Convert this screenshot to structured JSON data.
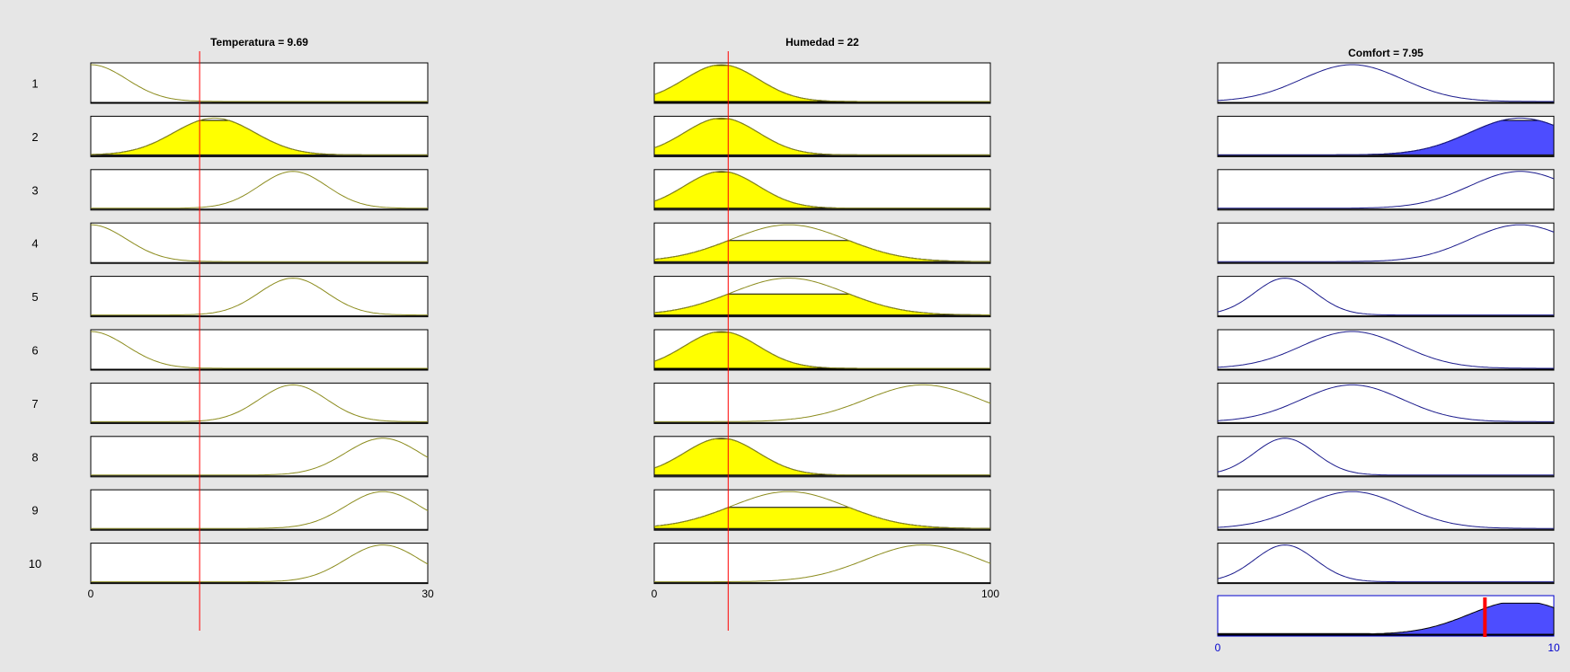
{
  "chart_data": {
    "type": "fuzzy-rule-viewer",
    "rules": [
      "1",
      "2",
      "3",
      "4",
      "5",
      "6",
      "7",
      "8",
      "9",
      "10"
    ],
    "inputs": [
      {
        "title": "Temperatura = 9.69",
        "value": 9.69,
        "range": [
          0,
          30
        ],
        "tick_labels": [
          "0",
          "30"
        ],
        "line_color": "#8c8c1e",
        "fill_color": "#ffff00",
        "mfs": [
          {
            "c": 0,
            "s": 3.2
          },
          {
            "c": 11,
            "s": 3.6
          },
          {
            "c": 18,
            "s": 3.0
          },
          {
            "c": 0,
            "s": 3.2
          },
          {
            "c": 18,
            "s": 3.0
          },
          {
            "c": 0,
            "s": 3.2
          },
          {
            "c": 18,
            "s": 3.0
          },
          {
            "c": 26,
            "s": 3.3
          },
          {
            "c": 26,
            "s": 3.3
          },
          {
            "c": 26,
            "s": 3.3
          }
        ],
        "active": [
          false,
          true,
          false,
          false,
          false,
          false,
          false,
          false,
          false,
          false
        ]
      },
      {
        "title": "Humedad = 22",
        "value": 22,
        "range": [
          0,
          100
        ],
        "tick_labels": [
          "0",
          "100"
        ],
        "line_color": "#8c8c1e",
        "fill_color": "#ffff00",
        "mfs": [
          {
            "c": 20,
            "s": 11
          },
          {
            "c": 20,
            "s": 11
          },
          {
            "c": 20,
            "s": 11
          },
          {
            "c": 40,
            "s": 17
          },
          {
            "c": 40,
            "s": 17
          },
          {
            "c": 20,
            "s": 11
          },
          {
            "c": 80,
            "s": 17
          },
          {
            "c": 20,
            "s": 11
          },
          {
            "c": 40,
            "s": 17
          },
          {
            "c": 80,
            "s": 17
          }
        ],
        "active": [
          true,
          true,
          true,
          true,
          true,
          true,
          false,
          true,
          true,
          false
        ]
      }
    ],
    "output": {
      "title": "Comfort = 7.95",
      "value": 7.95,
      "range": [
        0,
        10
      ],
      "tick_labels": [
        "0",
        "10"
      ],
      "line_color": "#1a1a8c",
      "fill_color": "#4d4dff",
      "mfs": [
        {
          "c": 4,
          "s": 1.5
        },
        {
          "c": 9,
          "s": 1.5
        },
        {
          "c": 9,
          "s": 1.5
        },
        {
          "c": 9,
          "s": 1.5
        },
        {
          "c": 2,
          "s": 0.9
        },
        {
          "c": 4,
          "s": 1.5
        },
        {
          "c": 4,
          "s": 1.5
        },
        {
          "c": 2,
          "s": 0.9
        },
        {
          "c": 4,
          "s": 1.5
        },
        {
          "c": 2,
          "s": 0.9
        }
      ],
      "active": [
        false,
        true,
        false,
        false,
        false,
        false,
        false,
        false,
        false,
        false
      ]
    },
    "grid": false,
    "legend": "none"
  }
}
